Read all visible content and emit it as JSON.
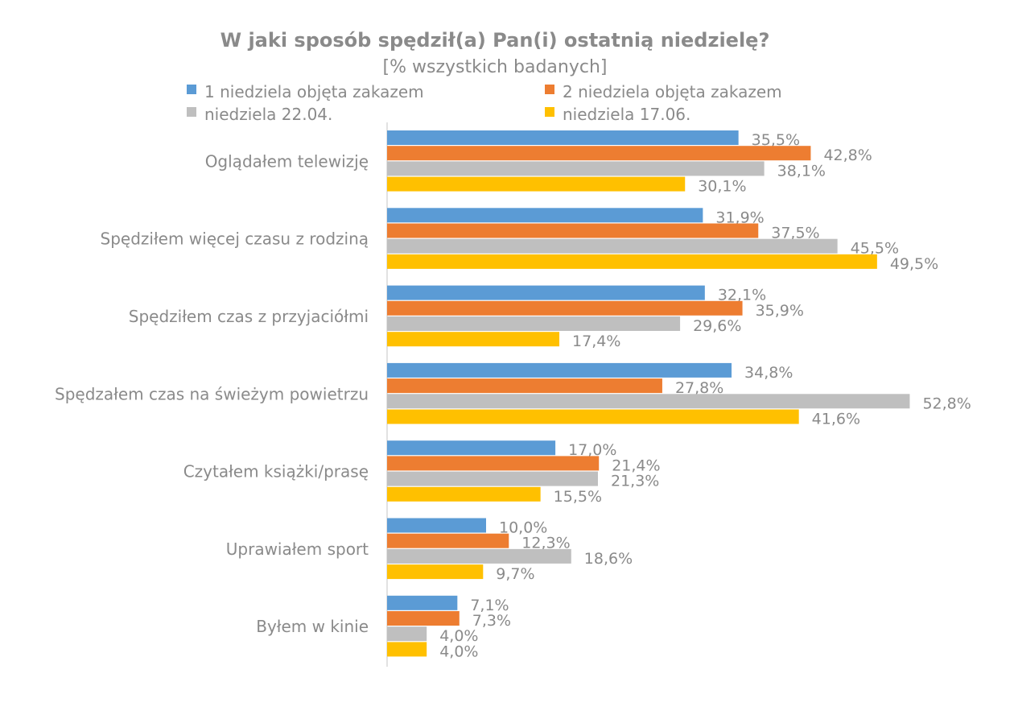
{
  "chart_data": {
    "type": "bar",
    "orientation": "horizontal",
    "title": "W jaki sposób spędził(a) Pan(i) ostatnią niedzielę?",
    "subtitle": "[% wszystkich badanych]",
    "legend_position": "top",
    "categories": [
      "Oglądałem telewizję",
      "Spędziłem więcej czasu z rodziną",
      "Spędziłem czas z przyjaciółmi",
      "Spędzałem czas na świeżym powietrzu",
      "Czytałem książki/prasę",
      "Uprawiałem sport",
      "Byłem w kinie"
    ],
    "series": [
      {
        "name": "1 niedziela objęta zakazem",
        "color": "#5b9bd5",
        "values": [
          35.5,
          31.9,
          32.1,
          34.8,
          17.0,
          10.0,
          7.1
        ],
        "labels": [
          "35,5%",
          "31,9%",
          "32,1%",
          "34,8%",
          "17,0%",
          "10,0%",
          "7,1%"
        ]
      },
      {
        "name": "2 niedziela objęta zakazem",
        "color": "#ed7d31",
        "values": [
          42.8,
          37.5,
          35.9,
          27.8,
          21.4,
          12.3,
          7.3
        ],
        "labels": [
          "42,8%",
          "37,5%",
          "35,9%",
          "27,8%",
          "21,4%",
          "12,3%",
          "7,3%"
        ]
      },
      {
        "name": "niedziela 22.04.",
        "color": "#bfbfbf",
        "values": [
          38.1,
          45.5,
          29.6,
          52.8,
          21.3,
          18.6,
          4.0
        ],
        "labels": [
          "38,1%",
          "45,5%",
          "29,6%",
          "52,8%",
          "21,3%",
          "18,6%",
          "4,0%"
        ]
      },
      {
        "name": "niedziela 17.06.",
        "color": "#ffc000",
        "values": [
          30.1,
          49.5,
          17.4,
          41.6,
          15.5,
          9.7,
          4.0
        ],
        "labels": [
          "30,1%",
          "49,5%",
          "17,4%",
          "41,6%",
          "15,5%",
          "9,7%",
          "4,0%"
        ]
      }
    ],
    "xlim": [
      0,
      60
    ],
    "grid": false
  }
}
